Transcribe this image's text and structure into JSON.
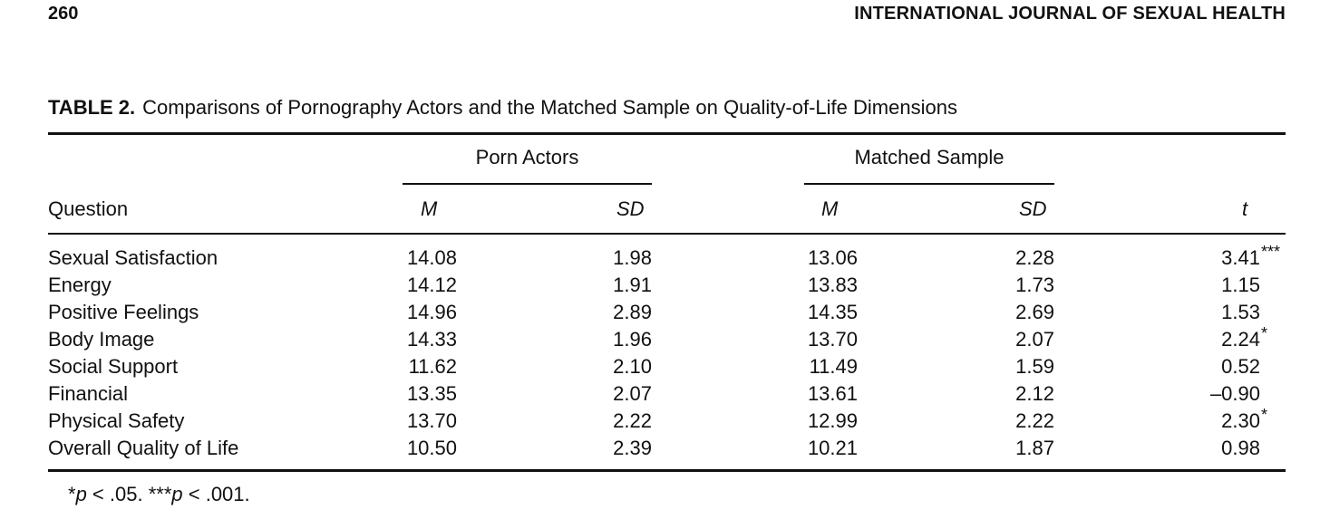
{
  "header": {
    "page_number": "260",
    "journal": "INTERNATIONAL JOURNAL OF SEXUAL HEALTH"
  },
  "table": {
    "label": "TABLE 2.",
    "title": "Comparisons of Pornography Actors and the Matched Sample on Quality-of-Life Dimensions",
    "groups": [
      "Porn Actors",
      "Matched Sample"
    ],
    "columns": [
      "Question",
      "M",
      "SD",
      "M",
      "SD",
      "t"
    ],
    "rows": [
      {
        "question": "Sexual Satisfaction",
        "pa_m": "14.08",
        "pa_sd": "1.98",
        "ms_m": "13.06",
        "ms_sd": "2.28",
        "t": "3.41",
        "sig": "***"
      },
      {
        "question": "Energy",
        "pa_m": "14.12",
        "pa_sd": "1.91",
        "ms_m": "13.83",
        "ms_sd": "1.73",
        "t": "1.15",
        "sig": ""
      },
      {
        "question": "Positive Feelings",
        "pa_m": "14.96",
        "pa_sd": "2.89",
        "ms_m": "14.35",
        "ms_sd": "2.69",
        "t": "1.53",
        "sig": ""
      },
      {
        "question": "Body Image",
        "pa_m": "14.33",
        "pa_sd": "1.96",
        "ms_m": "13.70",
        "ms_sd": "2.07",
        "t": "2.24",
        "sig": "*"
      },
      {
        "question": "Social Support",
        "pa_m": "11.62",
        "pa_sd": "2.10",
        "ms_m": "11.49",
        "ms_sd": "1.59",
        "t": "0.52",
        "sig": ""
      },
      {
        "question": "Financial",
        "pa_m": "13.35",
        "pa_sd": "2.07",
        "ms_m": "13.61",
        "ms_sd": "2.12",
        "t": "–0.90",
        "sig": ""
      },
      {
        "question": "Physical Safety",
        "pa_m": "13.70",
        "pa_sd": "2.22",
        "ms_m": "12.99",
        "ms_sd": "2.22",
        "t": "2.30",
        "sig": "*"
      },
      {
        "question": "Overall Quality of Life",
        "pa_m": "10.50",
        "pa_sd": "2.39",
        "ms_m": "10.21",
        "ms_sd": "1.87",
        "t": "0.98",
        "sig": ""
      }
    ],
    "footnote": {
      "star1": "*",
      "p1": "p",
      "text1": " < .05. ",
      "star3": "***",
      "p2": "p",
      "text2": " < .001."
    }
  }
}
